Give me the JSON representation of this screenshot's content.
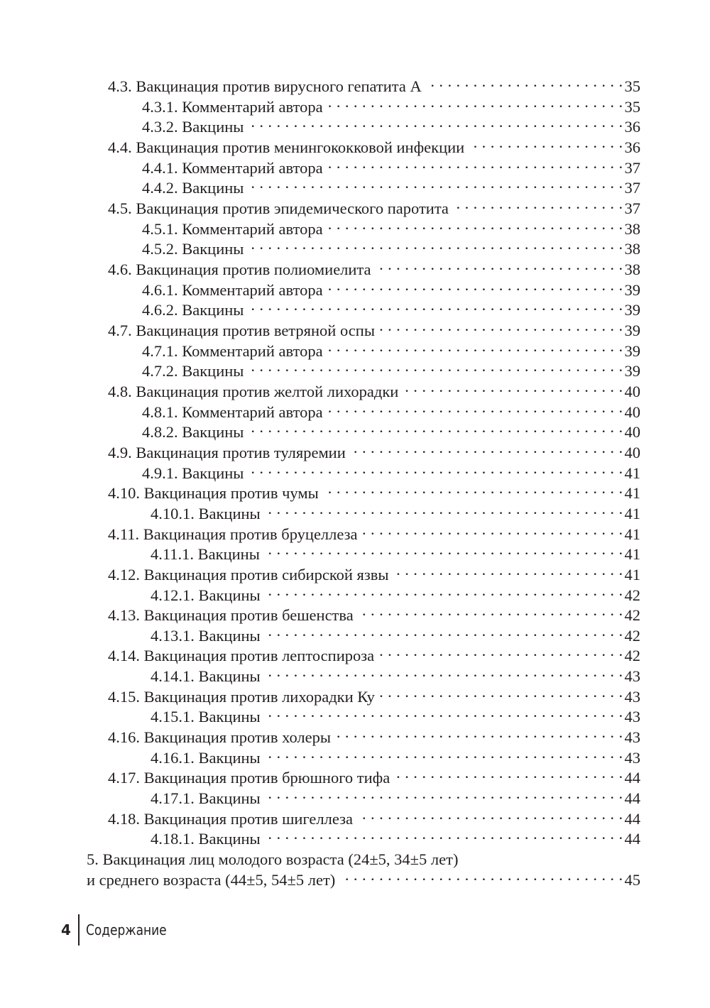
{
  "toc": [
    {
      "level": 2,
      "title": "4.3. Вакцинация против вирусного гепатита А",
      "page": "35"
    },
    {
      "level": 3,
      "title": "4.3.1. Комментарий автора",
      "page": "35"
    },
    {
      "level": 3,
      "title": "4.3.2. Вакцины",
      "page": "36"
    },
    {
      "level": 2,
      "title": "4.4. Вакцинация против менингококковой инфекции",
      "page": "36"
    },
    {
      "level": 3,
      "title": "4.4.1. Комментарий автора",
      "page": "37"
    },
    {
      "level": 3,
      "title": "4.4.2. Вакцины",
      "page": "37"
    },
    {
      "level": 2,
      "title": "4.5. Вакцинация против эпидемического паротита",
      "page": "37"
    },
    {
      "level": 3,
      "title": "4.5.1. Комментарий автора",
      "page": "38"
    },
    {
      "level": 3,
      "title": "4.5.2. Вакцины",
      "page": "38"
    },
    {
      "level": 2,
      "title": "4.6. Вакцинация против полиомиелита",
      "page": "38"
    },
    {
      "level": 3,
      "title": "4.6.1. Комментарий автора",
      "page": "39"
    },
    {
      "level": 3,
      "title": "4.6.2. Вакцины",
      "page": "39"
    },
    {
      "level": 2,
      "title": "4.7. Вакцинация против ветряной оспы",
      "page": "39"
    },
    {
      "level": 3,
      "title": "4.7.1. Комментарий автора",
      "page": "39"
    },
    {
      "level": 3,
      "title": "4.7.2. Вакцины",
      "page": "39"
    },
    {
      "level": 2,
      "title": "4.8. Вакцинация против желтой лихорадки",
      "page": "40"
    },
    {
      "level": 3,
      "title": "4.8.1. Комментарий автора",
      "page": "40"
    },
    {
      "level": 3,
      "title": "4.8.2. Вакцины",
      "page": "40"
    },
    {
      "level": 2,
      "title": "4.9. Вакцинация против туляремии",
      "page": "40"
    },
    {
      "level": 3,
      "title": "4.9.1. Вакцины",
      "page": "41"
    },
    {
      "level": 2,
      "title": "4.10. Вакцинация против чумы",
      "page": "41"
    },
    {
      "level": 4,
      "title": "4.10.1. Вакцины",
      "page": "41"
    },
    {
      "level": 2,
      "title": "4.11. Вакцинация против бруцеллеза",
      "page": "41"
    },
    {
      "level": 4,
      "title": "4.11.1. Вакцины",
      "page": "41"
    },
    {
      "level": 2,
      "title": "4.12. Вакцинация против сибирской язвы",
      "page": "41"
    },
    {
      "level": 4,
      "title": "4.12.1. Вакцины",
      "page": "42"
    },
    {
      "level": 2,
      "title": "4.13. Вакцинация против бешенства",
      "page": "42"
    },
    {
      "level": 4,
      "title": "4.13.1. Вакцины",
      "page": "42"
    },
    {
      "level": 2,
      "title": "4.14. Вакцинация против лептоспироза",
      "page": "42"
    },
    {
      "level": 4,
      "title": "4.14.1. Вакцины",
      "page": "43"
    },
    {
      "level": 2,
      "title": "4.15. Вакцинация против лихорадки Ку",
      "page": "43"
    },
    {
      "level": 4,
      "title": "4.15.1. Вакцины",
      "page": "43"
    },
    {
      "level": 2,
      "title": "4.16. Вакцинация против холеры",
      "page": "43"
    },
    {
      "level": 4,
      "title": "4.16.1. Вакцины",
      "page": "43"
    },
    {
      "level": 2,
      "title": "4.17. Вакцинация против брюшного тифа",
      "page": "44"
    },
    {
      "level": 4,
      "title": "4.17.1. Вакцины",
      "page": "44"
    },
    {
      "level": 2,
      "title": "4.18. Вакцинация против шигеллеза",
      "page": "44"
    },
    {
      "level": 4,
      "title": "4.18.1. Вакцины",
      "page": "44"
    },
    {
      "level": 1,
      "title": "5. Вакцинация лиц молодого возраста (24±5, 34±5 лет)",
      "page": null
    },
    {
      "level": 1,
      "title": "и среднего возраста (44±5, 54±5 лет)",
      "page": "45"
    }
  ],
  "footer": {
    "page_number": "4",
    "section": "Содержание"
  }
}
